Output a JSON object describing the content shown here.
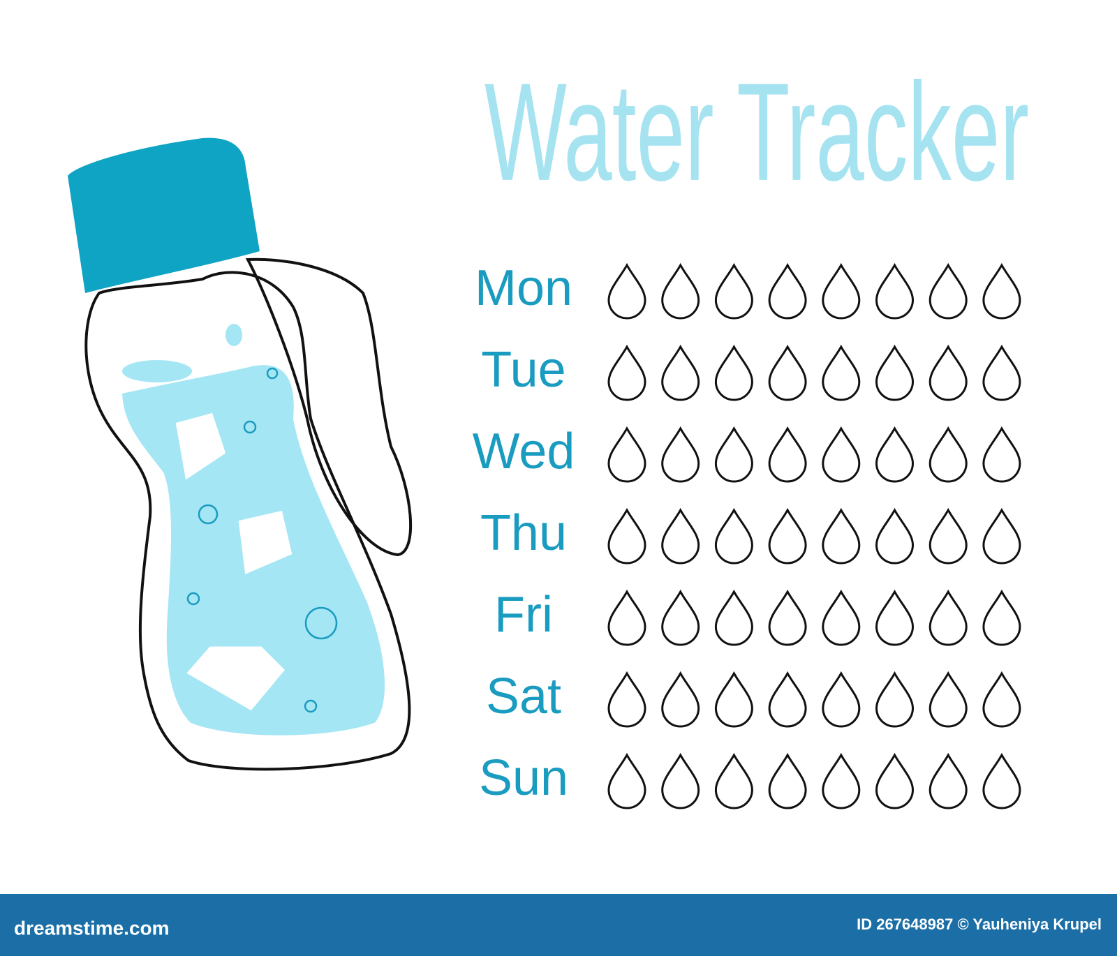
{
  "title": "Water Tracker",
  "days": [
    "Mon",
    "Tue",
    "Wed",
    "Thu",
    "Fri",
    "Sat",
    "Sun"
  ],
  "footer": {
    "site": "dreamstime.com",
    "credit": "ID 267648987 © Yauheniya Krupel"
  }
}
